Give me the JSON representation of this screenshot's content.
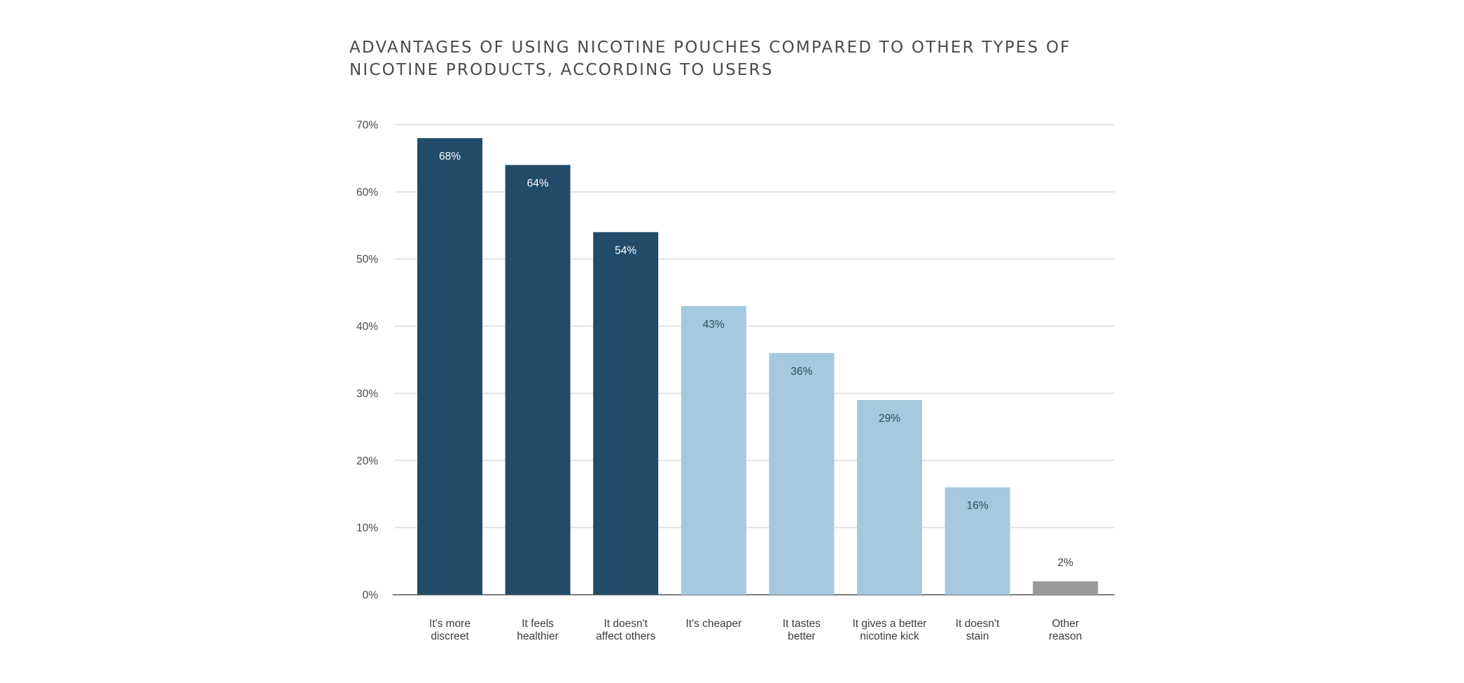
{
  "chart_data": {
    "type": "bar",
    "title": "ADVANTAGES OF USING NICOTINE POUCHES COMPARED TO OTHER TYPES OF NICOTINE PRODUCTS, ACCORDING TO USERS",
    "title_lines": [
      "ADVANTAGES OF USING NICOTINE POUCHES COMPARED TO OTHER TYPES OF",
      "NICOTINE PRODUCTS, ACCORDING TO USERS"
    ],
    "xlabel": "",
    "ylabel": "",
    "ylim": [
      0,
      70
    ],
    "y_ticks": [
      0,
      10,
      20,
      30,
      40,
      50,
      60,
      70
    ],
    "y_tick_labels": [
      "0%",
      "10%",
      "20%",
      "30%",
      "40%",
      "50%",
      "60%",
      "70%"
    ],
    "grid": true,
    "categories": [
      [
        "It's more",
        "discreet"
      ],
      [
        "It feels",
        "healthier"
      ],
      [
        "It doesn't",
        "affect others"
      ],
      [
        "It's cheaper"
      ],
      [
        "It tastes",
        "better"
      ],
      [
        "It gives a better",
        "nicotine kick"
      ],
      [
        "It doesn't",
        "stain"
      ],
      [
        "Other",
        "reason"
      ]
    ],
    "values": [
      68,
      64,
      54,
      43,
      36,
      29,
      16,
      2
    ],
    "data_labels": [
      "68%",
      "64%",
      "54%",
      "43%",
      "36%",
      "29%",
      "16%",
      "2%"
    ],
    "bar_colors": [
      "#224b6a",
      "#224b6a",
      "#224b6a",
      "#a5c9dd",
      "#a5c9dd",
      "#a5c9dd",
      "#a5c9dd",
      "#9a9a9c"
    ],
    "label_colors": [
      "#ffffff",
      "#ffffff",
      "#ffffff",
      "#2e4a5e",
      "#2e4a5e",
      "#2e4a5e",
      "#2e4a5e",
      "#3c3c3c"
    ]
  }
}
